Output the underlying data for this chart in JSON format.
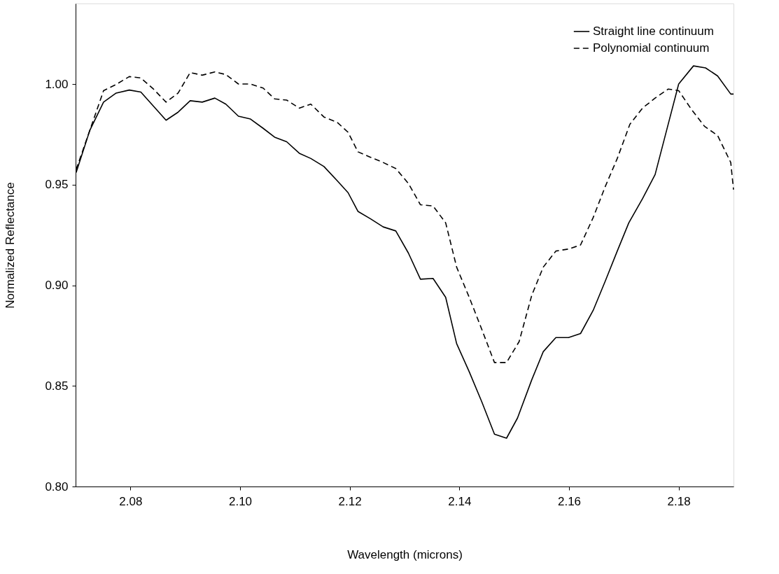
{
  "chart_data": {
    "type": "line",
    "xlabel": "Wavelength (microns)",
    "ylabel": "Normalized Reflectance",
    "xlim": [
      2.07,
      2.19
    ],
    "ylim": [
      0.8,
      1.04
    ],
    "xticks": [
      2.08,
      {
        "value": 2.1,
        "label": "2.10"
      },
      2.12,
      2.14,
      2.16,
      2.18
    ],
    "yticks": [
      {
        "value": 0.8,
        "label": "0.80"
      },
      0.85,
      {
        "value": 0.9,
        "label": "0.90"
      },
      0.95,
      {
        "value": 1.0,
        "label": "1.00"
      }
    ],
    "grid": false,
    "legend": "top right",
    "series": [
      {
        "name": "Straight line continuum",
        "color": "#000000",
        "line_style": "solid",
        "x": [
          2.0701,
          2.0726,
          2.0751,
          2.0774,
          2.0798,
          2.0819,
          2.0865,
          2.0887,
          2.0909,
          2.0931,
          2.0954,
          2.0974,
          2.0997,
          2.1019,
          2.1042,
          2.1063,
          2.1085,
          2.1108,
          2.1129,
          2.1153,
          2.1177,
          2.1197,
          2.1215,
          2.1238,
          2.1261,
          2.1284,
          2.1307,
          2.1329,
          2.1352,
          2.1375,
          2.1395,
          2.1418,
          2.1441,
          2.1464,
          2.1486,
          2.1506,
          2.1532,
          2.1553,
          2.1576,
          2.1599,
          2.1621,
          2.1644,
          2.1666,
          2.1688,
          2.1709,
          2.1734,
          2.1757,
          2.1778,
          2.18,
          2.1827,
          2.1849,
          2.1871,
          2.1895,
          2.19
        ],
        "values": [
          0.956,
          0.977,
          0.991,
          0.9955,
          0.997,
          0.996,
          0.982,
          0.986,
          0.9917,
          0.991,
          0.993,
          0.99,
          0.984,
          0.9826,
          0.978,
          0.9736,
          0.9713,
          0.9656,
          0.963,
          0.959,
          0.952,
          0.946,
          0.9367,
          0.933,
          0.929,
          0.927,
          0.916,
          0.903,
          0.9034,
          0.894,
          0.871,
          0.857,
          0.842,
          0.826,
          0.824,
          0.834,
          0.853,
          0.867,
          0.874,
          0.874,
          0.876,
          0.8875,
          0.902,
          0.917,
          0.931,
          0.943,
          0.955,
          0.977,
          1.0,
          1.009,
          1.008,
          1.004,
          0.995,
          0.995
        ]
      },
      {
        "name": "Polynomial continuum",
        "color": "#000000",
        "line_style": "dashed",
        "x": [
          2.0701,
          2.0726,
          2.0751,
          2.0774,
          2.0798,
          2.0819,
          2.0842,
          2.0865,
          2.0887,
          2.0909,
          2.0931,
          2.0954,
          2.0974,
          2.0997,
          2.1019,
          2.1042,
          2.1063,
          2.1085,
          2.1108,
          2.1129,
          2.1153,
          2.1177,
          2.1197,
          2.1215,
          2.1238,
          2.1261,
          2.1284,
          2.1307,
          2.1329,
          2.1352,
          2.1375,
          2.1395,
          2.1418,
          2.1441,
          2.1464,
          2.1486,
          2.1509,
          2.1532,
          2.1553,
          2.1576,
          2.1599,
          2.1621,
          2.1644,
          2.1666,
          2.1688,
          2.1711,
          2.1734,
          2.1757,
          2.1781,
          2.18,
          2.1823,
          2.1847,
          2.1871,
          2.1895,
          2.19
        ],
        "values": [
          0.9575,
          0.977,
          0.9967,
          0.9998,
          1.0037,
          1.003,
          0.9975,
          0.991,
          0.9955,
          1.0057,
          1.0044,
          1.006,
          1.0047,
          1.0,
          1.0,
          0.998,
          0.9926,
          0.992,
          0.988,
          0.99,
          0.9836,
          0.981,
          0.976,
          0.9663,
          0.9636,
          0.961,
          0.958,
          0.9506,
          0.94,
          0.9394,
          0.931,
          0.909,
          0.894,
          0.878,
          0.8616,
          0.8616,
          0.872,
          0.895,
          0.909,
          0.917,
          0.918,
          0.92,
          0.9336,
          0.949,
          0.963,
          0.98,
          0.988,
          0.993,
          0.9975,
          0.9967,
          0.9875,
          0.979,
          0.9744,
          0.961,
          0.9475
        ]
      }
    ]
  }
}
